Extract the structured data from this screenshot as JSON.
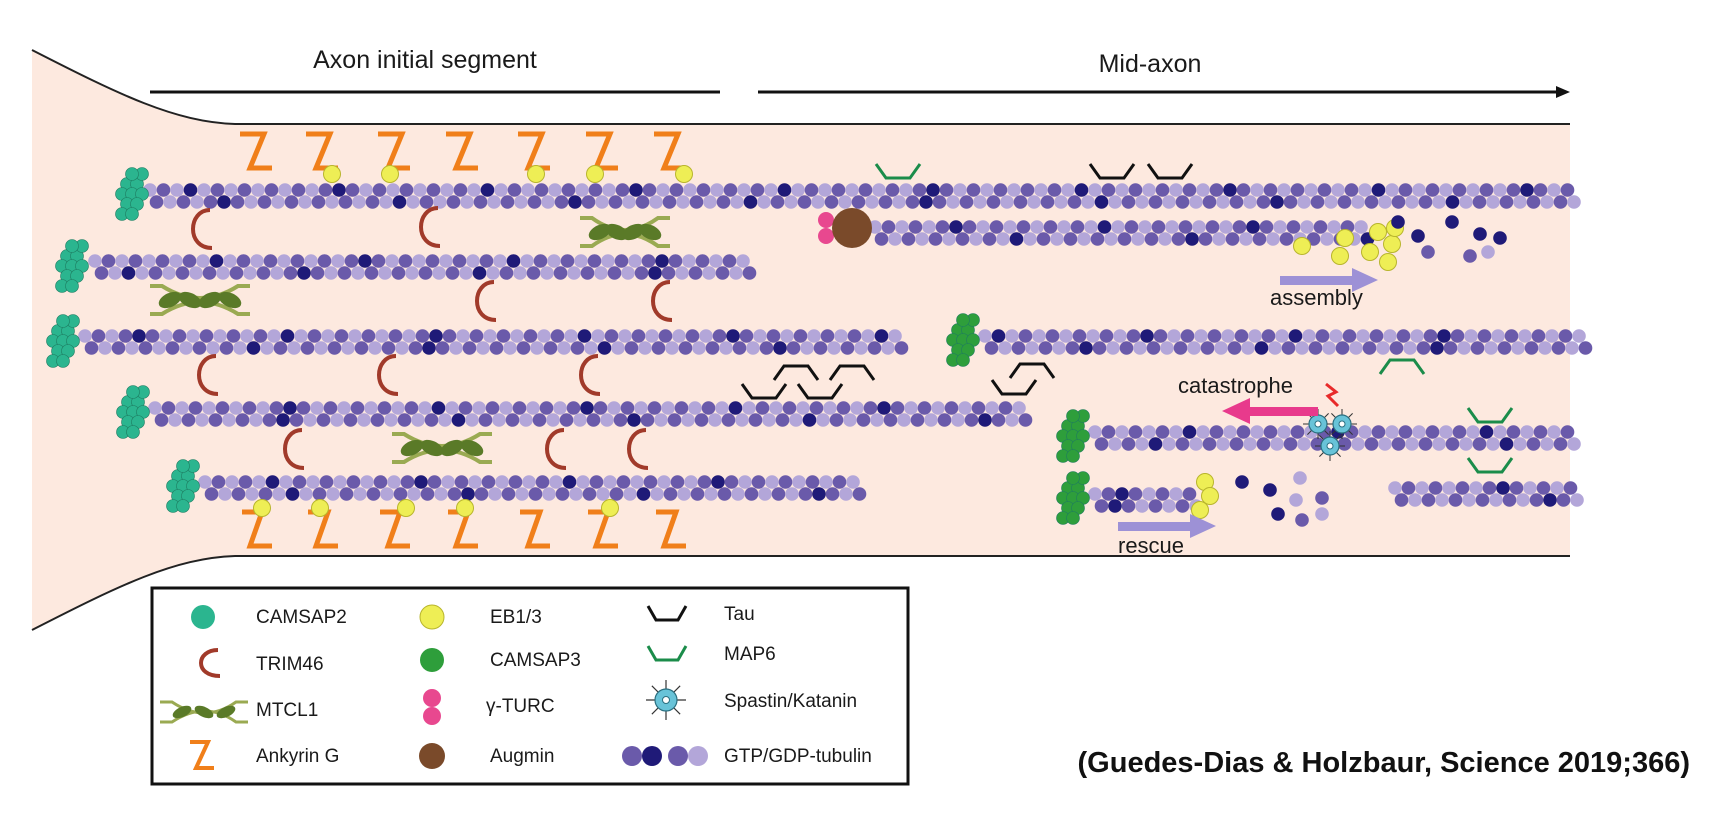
{
  "regions": {
    "ais": "Axon initial segment",
    "mid": "Mid-axon"
  },
  "annotations": {
    "assembly": "assembly",
    "catastrophe": "catastrophe",
    "rescue": "rescue"
  },
  "legend": {
    "col1": [
      "CAMSAP2",
      "TRIM46",
      "MTCL1",
      "Ankyrin G"
    ],
    "col2": [
      "EB1/3",
      "CAMSAP3",
      "γ-TURC",
      "Augmin"
    ],
    "col3": [
      "Tau",
      "MAP6",
      "Spastin/Katanin",
      "GTP/GDP-tubulin"
    ]
  },
  "citation": "(Guedes-Dias & Holzbaur, Science 2019;366)",
  "colors": {
    "axoplasm": "#fde9df",
    "tubulin_light": "#b3a6d9",
    "tubulin_mid": "#6a5aaa",
    "tubulin_dark": "#1f1a78",
    "camsap2": "#2bb58f",
    "camsap3": "#2e9e3b",
    "eb": "#eeee55",
    "trim46": "#a13a2a",
    "mtcl1": "#5a7a28",
    "ankyrin": "#f07f1a",
    "tau": "#111111",
    "map6": "#1b8c4a",
    "gtp_ring": "#e8488f",
    "augmin": "#7a4a2a",
    "spastin": "#68c3d8",
    "arrow_assembly": "#9d91d6",
    "arrow_catastrophe": "#e83a8c",
    "spark": "#e82a2a"
  }
}
